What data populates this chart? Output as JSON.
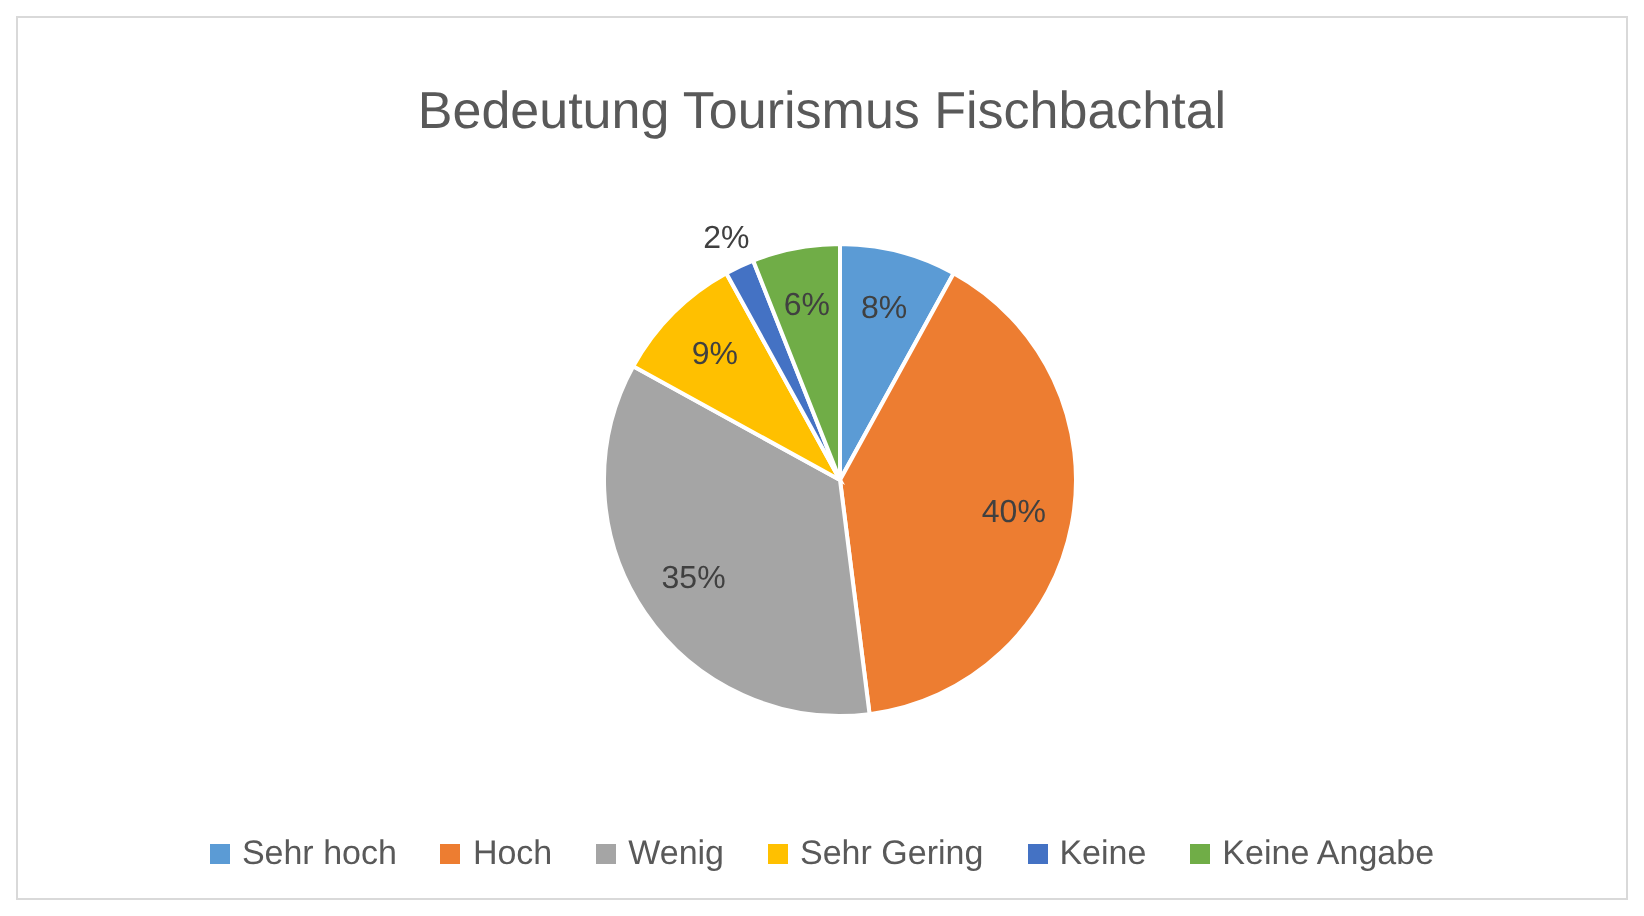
{
  "chart_data": {
    "type": "pie",
    "title": "Bedeutung Tourismus Fischbachtal",
    "categories": [
      "Sehr hoch",
      "Hoch",
      "Wenig",
      "Sehr Gering",
      "Keine",
      "Keine Angabe"
    ],
    "values": [
      8,
      40,
      35,
      9,
      2,
      6
    ],
    "colors": [
      "#5b9bd5",
      "#ed7d31",
      "#a5a5a5",
      "#ffc000",
      "#4472c4",
      "#70ad47"
    ],
    "value_labels": [
      "8%",
      "40%",
      "35%",
      "9%",
      "2%",
      "6%"
    ],
    "legend": "bottom"
  }
}
